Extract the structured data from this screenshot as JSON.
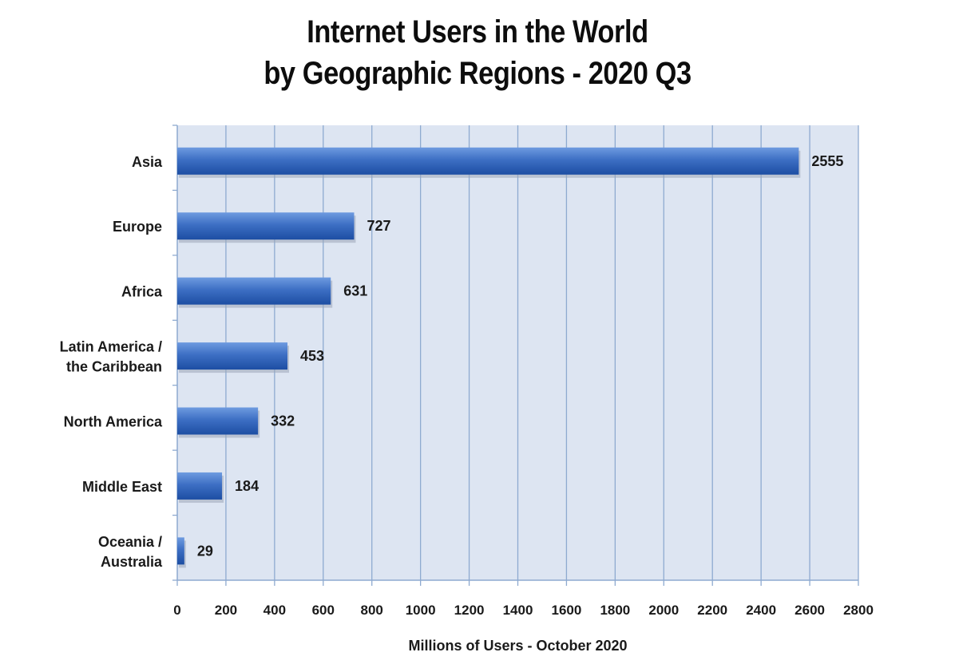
{
  "chart_data": {
    "type": "bar",
    "orientation": "horizontal",
    "title_lines": [
      "Internet Users in the World",
      "by Geographic Regions -  2020 Q3"
    ],
    "xlabel": "Millions of Users - October 2020",
    "ylabel": "",
    "categories": [
      [
        "Asia"
      ],
      [
        "Europe"
      ],
      [
        "Africa"
      ],
      [
        "Latin America /",
        "the Caribbean"
      ],
      [
        "North America"
      ],
      [
        "Middle East"
      ],
      [
        "Oceania  /",
        "Australia"
      ]
    ],
    "values": [
      2555,
      727,
      631,
      453,
      332,
      184,
      29
    ],
    "value_labels": [
      "2555",
      "727",
      "631",
      "453",
      "332",
      "184",
      "29"
    ],
    "xlim": [
      0,
      2800
    ],
    "x_ticks": [
      "0",
      "200",
      "400",
      "600",
      "800",
      "1000",
      "1200",
      "1400",
      "1600",
      "1800",
      "2000",
      "2200",
      "2400",
      "2600",
      "2800"
    ],
    "grid": true,
    "legend": "none",
    "colors": {
      "plot_background": "#dde5f2",
      "grid": "#8eaad0",
      "bar_top": "#6e9be0",
      "bar_mid": "#3d6fc4",
      "bar_bottom": "#1d4ea3",
      "value_label": "#1f2d4a"
    }
  }
}
